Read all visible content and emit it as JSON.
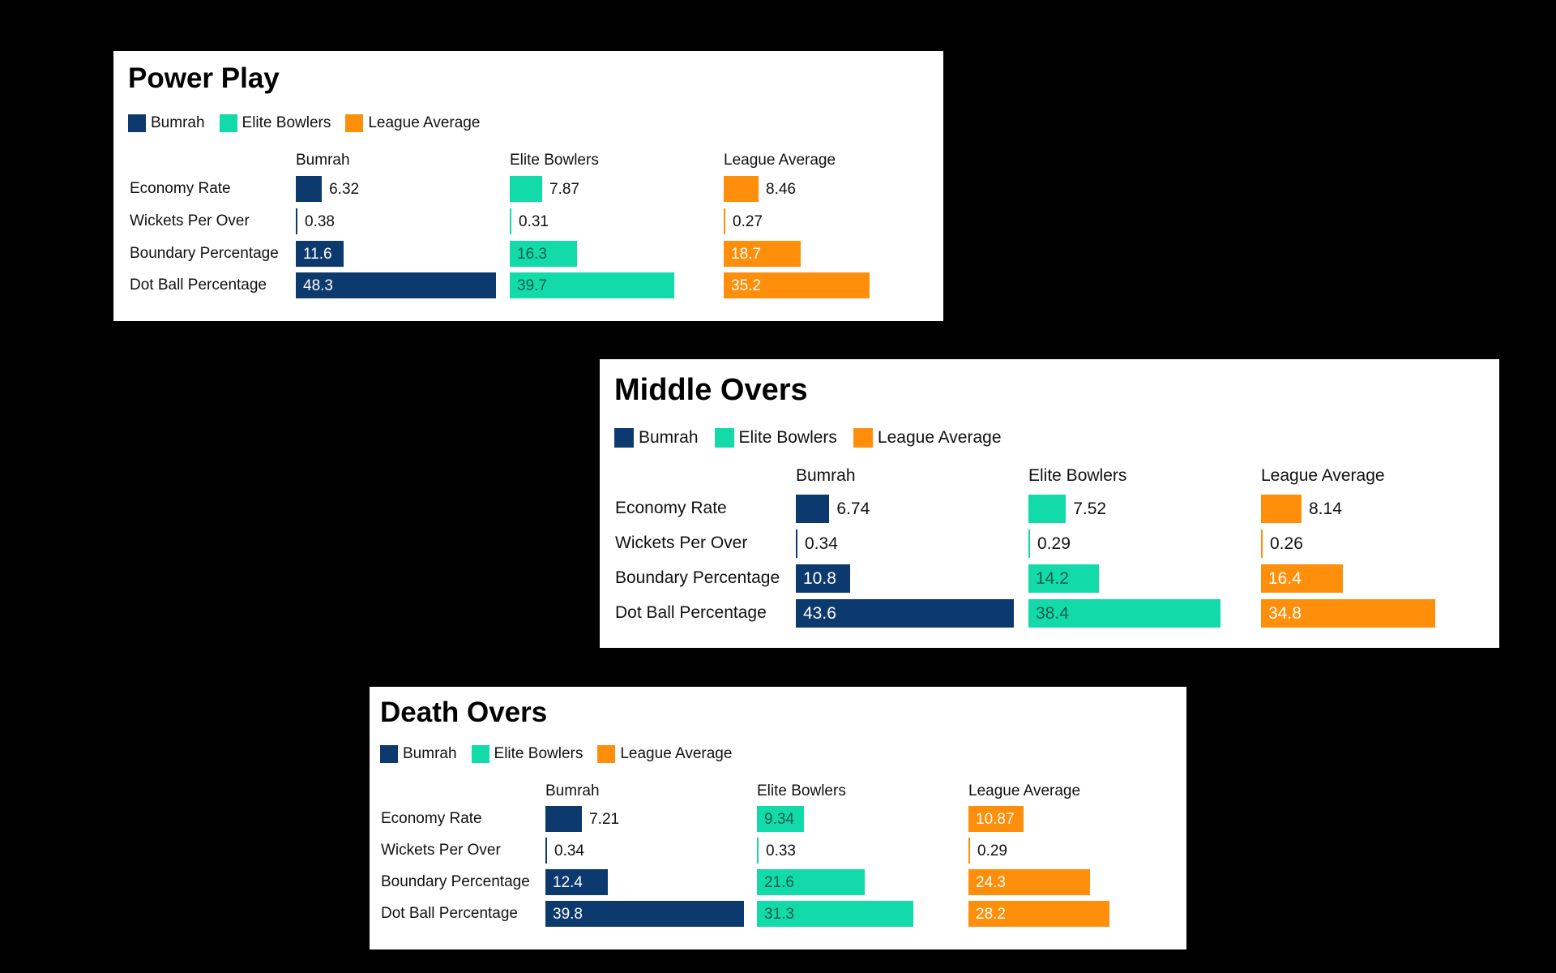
{
  "colors": {
    "Bumrah": "#0d3a6e",
    "Elite Bowlers": "#12dba9",
    "League Average": "#ff8f0a"
  },
  "chart_data": [
    {
      "type": "bar",
      "title": "Power Play",
      "legend": [
        "Bumrah",
        "Elite Bowlers",
        "League Average"
      ],
      "columns": [
        "Bumrah",
        "Elite Bowlers",
        "League Average"
      ],
      "categories": [
        "Economy Rate",
        "Wickets Per Over",
        "Boundary Percentage",
        "Dot Ball Percentage"
      ],
      "series": [
        {
          "name": "Bumrah",
          "values": [
            6.32,
            0.38,
            11.6,
            48.3
          ]
        },
        {
          "name": "Elite Bowlers",
          "values": [
            7.87,
            0.31,
            16.3,
            39.7
          ]
        },
        {
          "name": "League Average",
          "values": [
            8.46,
            0.27,
            18.7,
            35.2
          ]
        }
      ]
    },
    {
      "type": "bar",
      "title": "Middle Overs",
      "legend": [
        "Bumrah",
        "Elite Bowlers",
        "League Average"
      ],
      "columns": [
        "Bumrah",
        "Elite Bowlers",
        "League Average"
      ],
      "categories": [
        "Economy Rate",
        "Wickets Per Over",
        "Boundary Percentage",
        "Dot Ball Percentage"
      ],
      "series": [
        {
          "name": "Bumrah",
          "values": [
            6.74,
            0.34,
            10.8,
            43.6
          ]
        },
        {
          "name": "Elite Bowlers",
          "values": [
            7.52,
            0.29,
            14.2,
            38.4
          ]
        },
        {
          "name": "League Average",
          "values": [
            8.14,
            0.26,
            16.4,
            34.8
          ]
        }
      ]
    },
    {
      "type": "bar",
      "title": "Death Overs",
      "legend": [
        "Bumrah",
        "Elite Bowlers",
        "League Average"
      ],
      "columns": [
        "Bumrah",
        "Elite Bowlers",
        "League Average"
      ],
      "categories": [
        "Economy Rate",
        "Wickets Per Over",
        "Boundary Percentage",
        "Dot Ball Percentage"
      ],
      "series": [
        {
          "name": "Bumrah",
          "values": [
            7.21,
            0.34,
            12.4,
            39.8
          ]
        },
        {
          "name": "Elite Bowlers",
          "values": [
            9.34,
            0.33,
            21.6,
            31.3
          ]
        },
        {
          "name": "League Average",
          "values": [
            10.87,
            0.29,
            24.3,
            28.2
          ]
        }
      ]
    }
  ]
}
